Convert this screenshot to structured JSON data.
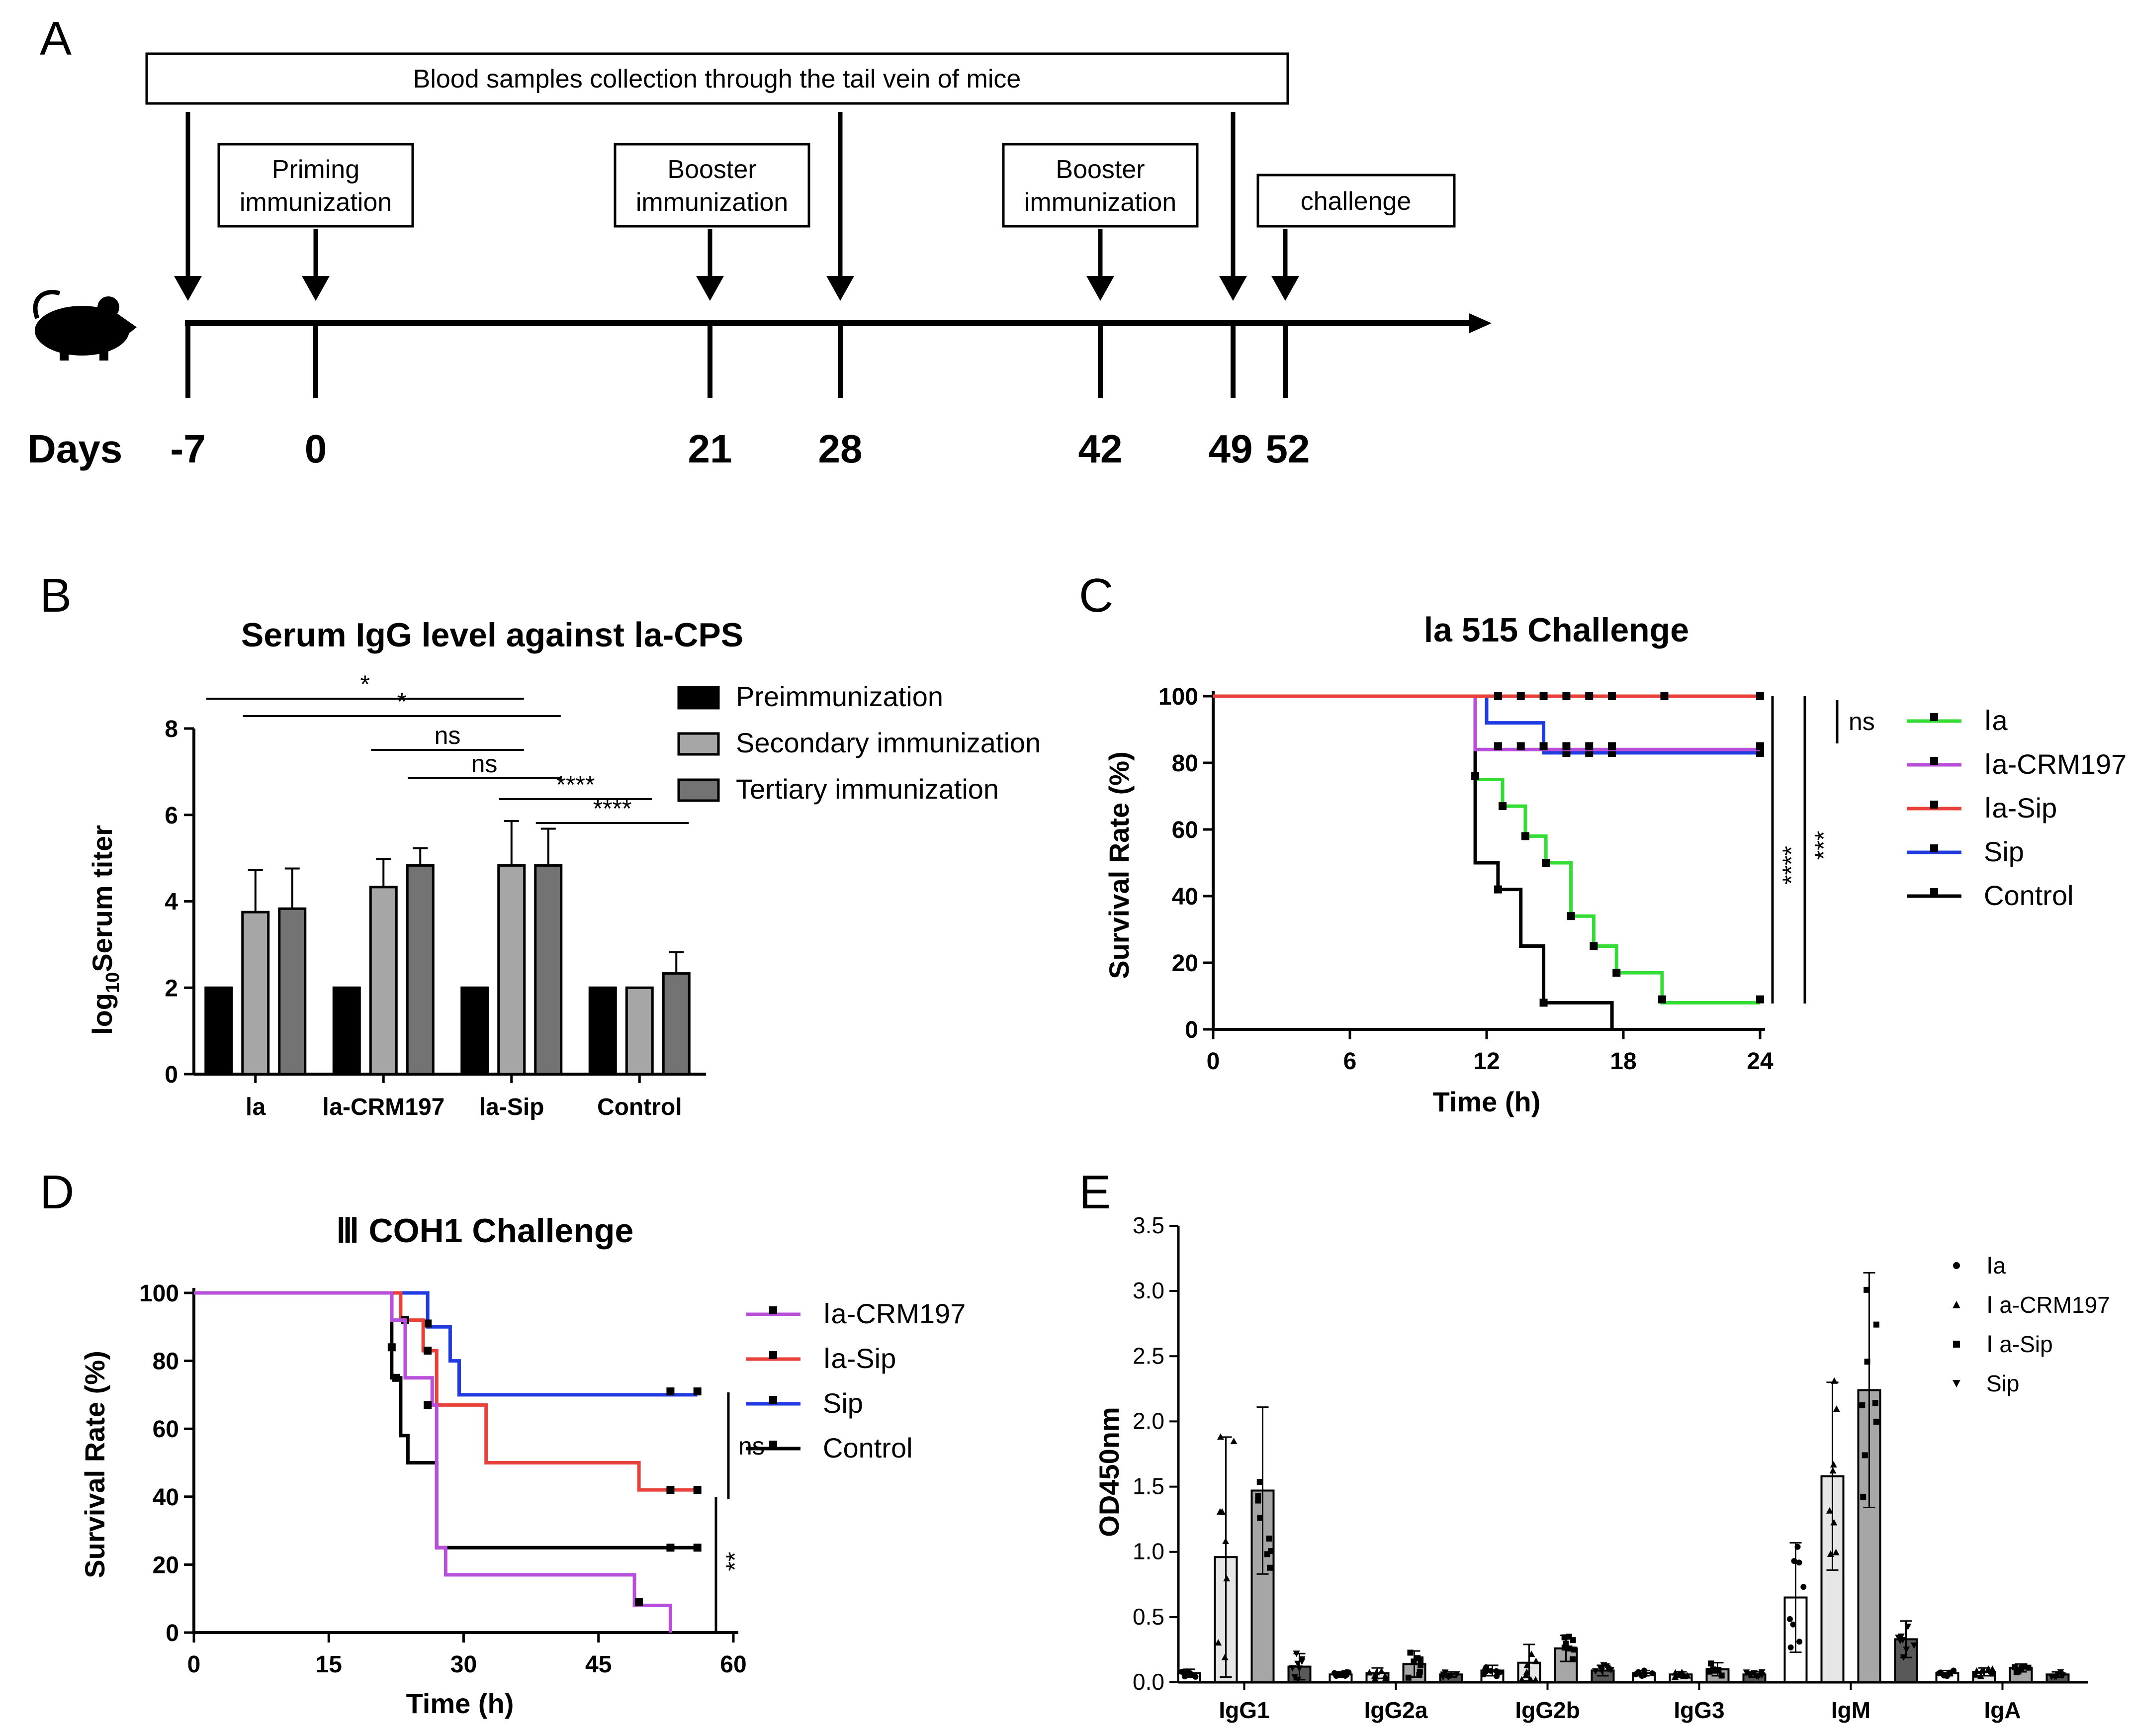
{
  "colors": {
    "pre": "#000000",
    "secondary": "#a6a6a6",
    "tertiary": "#737373",
    "Ia": "#33dd33",
    "CRM197": "#b84fd9",
    "Sip": "#e8403a",
    "SipOnly": "#1f3ae0",
    "Control": "#000000",
    "bar_light": "#e6e6e6",
    "bar_mid": "#a6a6a6",
    "bar_dark": "#595959"
  },
  "panelA": {
    "letter": "A",
    "banner": "Blood samples collection through the tail vein of mice",
    "mouse_icon": "mouse-icon",
    "events": [
      {
        "label_lines": [
          "Priming",
          "immunization"
        ]
      },
      {
        "label_lines": [
          "Booster",
          "immunization"
        ]
      },
      {
        "label_lines": [
          "Booster",
          "immunization"
        ]
      },
      {
        "label_lines": [
          "challenge"
        ]
      }
    ],
    "days_label": "Days",
    "days": [
      "-7",
      "0",
      "21",
      "28",
      "42",
      "49",
      "52"
    ]
  },
  "chart_data": [
    {
      "panel": "B",
      "type": "bar",
      "title": "Serum IgG level against Ⅰa-CPS",
      "xlabel": "",
      "ylabel": "log10Serum titer",
      "ylabel_main": "log",
      "ylabel_sub": "10",
      "ylabel_rest": "Serum titer",
      "ylim": [
        0,
        8
      ],
      "yticks": [
        "0",
        "2",
        "4",
        "6",
        "8"
      ],
      "categories": [
        "Ⅰa",
        "Ⅰa-CRM197",
        "Ⅰa-Sip",
        "Control"
      ],
      "series": [
        {
          "name": "Preimmunization",
          "values": [
            2.0,
            2.0,
            2.0,
            2.0
          ],
          "errors": [
            0,
            0,
            0,
            0
          ]
        },
        {
          "name": "Secondary immunization",
          "values": [
            3.75,
            4.33,
            4.83,
            2.0
          ],
          "errors": [
            0.97,
            0.65,
            1.03,
            0
          ]
        },
        {
          "name": "Tertiary immunization",
          "values": [
            3.83,
            4.83,
            4.83,
            2.33
          ],
          "errors": [
            0.93,
            0.4,
            0.85,
            0.49
          ]
        }
      ],
      "significance": [
        {
          "label": "*"
        },
        {
          "label": "*"
        },
        {
          "label": "ns"
        },
        {
          "label": "ns"
        },
        {
          "label": "****"
        },
        {
          "label": "****"
        }
      ]
    },
    {
      "panel": "C",
      "type": "line",
      "title": "Ⅰa 515 Challenge",
      "xlabel": "Time (h)",
      "ylabel": "Survival Rate (%)",
      "xlim": [
        0,
        24
      ],
      "ylim": [
        0,
        100
      ],
      "xticks": [
        "0",
        "6",
        "12",
        "18",
        "24"
      ],
      "yticks": [
        "0",
        "20",
        "40",
        "60",
        "80",
        "100"
      ],
      "series": [
        {
          "name": "Sip",
          "steps": [
            [
              0,
              100
            ],
            [
              12,
              100
            ],
            [
              12,
              92
            ],
            [
              14.5,
              92
            ],
            [
              14.5,
              83
            ],
            [
              24,
              83
            ]
          ],
          "censor": [
            [
              15.5,
              83
            ],
            [
              16.5,
              83
            ],
            [
              17.5,
              83
            ],
            [
              24,
              83
            ]
          ]
        },
        {
          "name": "Ⅰa",
          "steps": [
            [
              0,
              100
            ],
            [
              11.5,
              100
            ],
            [
              11.5,
              75
            ],
            [
              12.7,
              75
            ],
            [
              12.7,
              67
            ],
            [
              13.7,
              67
            ],
            [
              13.7,
              58
            ],
            [
              14.6,
              58
            ],
            [
              14.6,
              50
            ],
            [
              15.7,
              50
            ],
            [
              15.7,
              34
            ],
            [
              16.7,
              34
            ],
            [
              16.7,
              25
            ],
            [
              17.7,
              25
            ],
            [
              17.7,
              17
            ],
            [
              19.7,
              17
            ],
            [
              19.7,
              8
            ],
            [
              24,
              8
            ]
          ],
          "censor": [
            [
              11.5,
              76
            ],
            [
              12.7,
              67
            ],
            [
              13.7,
              58
            ],
            [
              14.6,
              50
            ],
            [
              15.7,
              34
            ],
            [
              16.7,
              25
            ],
            [
              17.7,
              17
            ],
            [
              19.7,
              9
            ],
            [
              24,
              9
            ]
          ]
        },
        {
          "name": "Control",
          "steps": [
            [
              0,
              100
            ],
            [
              11.5,
              100
            ],
            [
              11.5,
              50
            ],
            [
              12.5,
              50
            ],
            [
              12.5,
              42
            ],
            [
              13.5,
              42
            ],
            [
              13.5,
              25
            ],
            [
              14.5,
              25
            ],
            [
              14.5,
              8
            ],
            [
              17.5,
              8
            ],
            [
              17.5,
              0
            ]
          ],
          "censor": [
            [
              12.5,
              42
            ],
            [
              14.5,
              8
            ]
          ]
        },
        {
          "name": "Ⅰa-CRM197",
          "steps": [
            [
              0,
              100
            ],
            [
              11.5,
              100
            ],
            [
              11.5,
              84
            ],
            [
              24,
              84
            ]
          ],
          "censor": [
            [
              12.5,
              85
            ],
            [
              13.5,
              85
            ],
            [
              14.5,
              85
            ],
            [
              15.5,
              85
            ],
            [
              16.5,
              85
            ],
            [
              17.5,
              85
            ],
            [
              24,
              85
            ]
          ]
        },
        {
          "name": "Ⅰa-Sip",
          "steps": [
            [
              0,
              100
            ],
            [
              24,
              100
            ]
          ],
          "censor": [
            [
              12.5,
              100
            ],
            [
              13.5,
              100
            ],
            [
              14.5,
              100
            ],
            [
              15.5,
              100
            ],
            [
              16.5,
              100
            ],
            [
              17.5,
              100
            ],
            [
              19.8,
              100
            ],
            [
              24,
              100
            ]
          ]
        }
      ],
      "legend": [
        "Ⅰa",
        "Ⅰa-CRM197",
        "Ⅰa-Sip",
        "Sip",
        "Control"
      ],
      "significance": [
        {
          "label": "ns"
        },
        {
          "label": "****"
        },
        {
          "label": "***"
        }
      ]
    },
    {
      "panel": "D",
      "type": "line",
      "title": "Ⅲ COH1 Challenge",
      "xlabel": "Time (h)",
      "ylabel": "Survival Rate (%)",
      "xlim": [
        0,
        60
      ],
      "ylim": [
        0,
        100
      ],
      "xticks": [
        "0",
        "15",
        "30",
        "45",
        "60"
      ],
      "yticks": [
        "0",
        "20",
        "40",
        "60",
        "80",
        "100"
      ],
      "series": [
        {
          "name": "Sip",
          "steps": [
            [
              0,
              100
            ],
            [
              26,
              100
            ],
            [
              26,
              90
            ],
            [
              28.5,
              90
            ],
            [
              28.5,
              80
            ],
            [
              29.5,
              80
            ],
            [
              29.5,
              70
            ],
            [
              56,
              70
            ]
          ],
          "censor": [
            [
              26,
              91
            ],
            [
              53,
              71
            ],
            [
              56,
              71
            ]
          ]
        },
        {
          "name": "Ⅰa-Sip",
          "steps": [
            [
              0,
              100
            ],
            [
              23,
              100
            ],
            [
              23,
              92
            ],
            [
              25.5,
              92
            ],
            [
              25.5,
              83
            ],
            [
              27,
              83
            ],
            [
              27,
              67
            ],
            [
              32.5,
              67
            ],
            [
              32.5,
              50
            ],
            [
              49.5,
              50
            ],
            [
              49.5,
              42
            ],
            [
              56,
              42
            ]
          ],
          "censor": [
            [
              23.5,
              92
            ],
            [
              26,
              83
            ],
            [
              53,
              42
            ],
            [
              56,
              42
            ]
          ]
        },
        {
          "name": "Control",
          "steps": [
            [
              0,
              100
            ],
            [
              22,
              100
            ],
            [
              22,
              75
            ],
            [
              23,
              75
            ],
            [
              23,
              58
            ],
            [
              23.8,
              58
            ],
            [
              23.8,
              50
            ],
            [
              27,
              50
            ],
            [
              27,
              25
            ],
            [
              56,
              25
            ]
          ],
          "censor": [
            [
              22,
              84
            ],
            [
              22.5,
              75
            ],
            [
              53,
              25
            ],
            [
              56,
              25
            ]
          ]
        },
        {
          "name": "Ⅰa-CRM197",
          "steps": [
            [
              0,
              100
            ],
            [
              22,
              100
            ],
            [
              22,
              92
            ],
            [
              23.5,
              92
            ],
            [
              23.5,
              75
            ],
            [
              26.5,
              75
            ],
            [
              26.5,
              67
            ],
            [
              27,
              67
            ],
            [
              27,
              25
            ],
            [
              28,
              25
            ],
            [
              28,
              17
            ],
            [
              49,
              17
            ],
            [
              49,
              8
            ],
            [
              53,
              8
            ],
            [
              53,
              0
            ]
          ],
          "censor": [
            [
              26,
              67
            ],
            [
              49.5,
              9
            ]
          ]
        }
      ],
      "legend": [
        "Ⅰa-CRM197",
        "Ⅰa-Sip",
        "Sip",
        "Control"
      ],
      "significance": [
        {
          "label": "ns"
        },
        {
          "label": "**"
        }
      ]
    },
    {
      "panel": "E",
      "type": "bar",
      "title": "",
      "xlabel": "",
      "ylabel": "OD450nm",
      "ylim": [
        0,
        3.5
      ],
      "yticks": [
        "0.0",
        "0.5",
        "1.0",
        "1.5",
        "2.0",
        "2.5",
        "3.0",
        "3.5"
      ],
      "categories": [
        "IgG1",
        "IgG2a",
        "IgG2b",
        "IgG3",
        "IgM",
        "IgA"
      ],
      "series": [
        {
          "name": "Ⅰa",
          "values": [
            0.07,
            0.06,
            0.09,
            0.07,
            0.65,
            0.07
          ],
          "errors": [
            0.03,
            0.02,
            0.04,
            0.02,
            0.42,
            0.02
          ]
        },
        {
          "name": "Ⅰa-CRM197",
          "values": [
            0.96,
            0.07,
            0.15,
            0.06,
            1.58,
            0.08
          ],
          "errors": [
            0.92,
            0.04,
            0.14,
            0.02,
            0.72,
            0.03
          ]
        },
        {
          "name": "Ⅰa-Sip",
          "values": [
            1.47,
            0.14,
            0.26,
            0.1,
            2.24,
            0.11
          ],
          "errors": [
            0.64,
            0.1,
            0.1,
            0.05,
            0.9,
            0.03
          ]
        },
        {
          "name": "Sip",
          "values": [
            0.12,
            0.06,
            0.09,
            0.06,
            0.33,
            0.06
          ],
          "errors": [
            0.1,
            0.02,
            0.04,
            0.02,
            0.14,
            0.02
          ]
        }
      ],
      "legend": [
        "Ⅰa",
        "Ⅰ a-CRM197",
        "Ⅰ a-Sip",
        "Sip"
      ]
    }
  ]
}
